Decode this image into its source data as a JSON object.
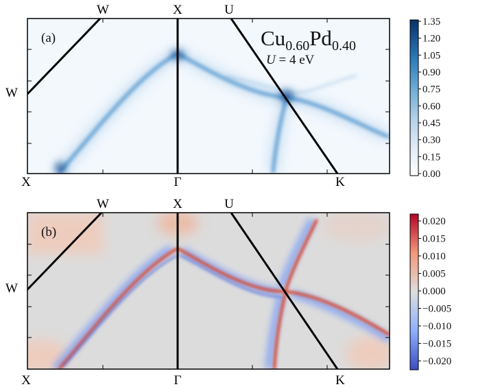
{
  "figure": {
    "panel_a": {
      "label": "(a)",
      "composition": {
        "base1": "Cu",
        "sub1": "0.60",
        "base2": "Pd",
        "sub2": "0.40"
      },
      "interaction": {
        "symbol": "U",
        "rest": " = 4 eV"
      },
      "top_kpoints": [
        "W",
        "X",
        "U"
      ],
      "bottom_kpoints": [
        "X",
        "Γ",
        "K"
      ],
      "left_kpoint": "W",
      "colorbar": {
        "ticks": [
          "1.35",
          "1.20",
          "1.05",
          "0.90",
          "0.75",
          "0.60",
          "0.45",
          "0.30",
          "0.15",
          "0.00"
        ],
        "colors": {
          "low": "#ffffff",
          "high": "#0a3a80"
        }
      }
    },
    "panel_b": {
      "label": "(b)",
      "top_kpoints": [
        "W",
        "X",
        "U"
      ],
      "bottom_kpoints": [
        "X",
        "Γ",
        "K"
      ],
      "left_kpoint": "W",
      "colorbar": {
        "ticks": [
          "0.020",
          "0.015",
          "0.010",
          "0.005",
          "0.000",
          "−0.005",
          "−0.010",
          "−0.015",
          "−0.020"
        ],
        "colors": {
          "low": "#3b4cc0",
          "mid": "#dddddd",
          "high": "#b40426"
        }
      }
    }
  }
}
